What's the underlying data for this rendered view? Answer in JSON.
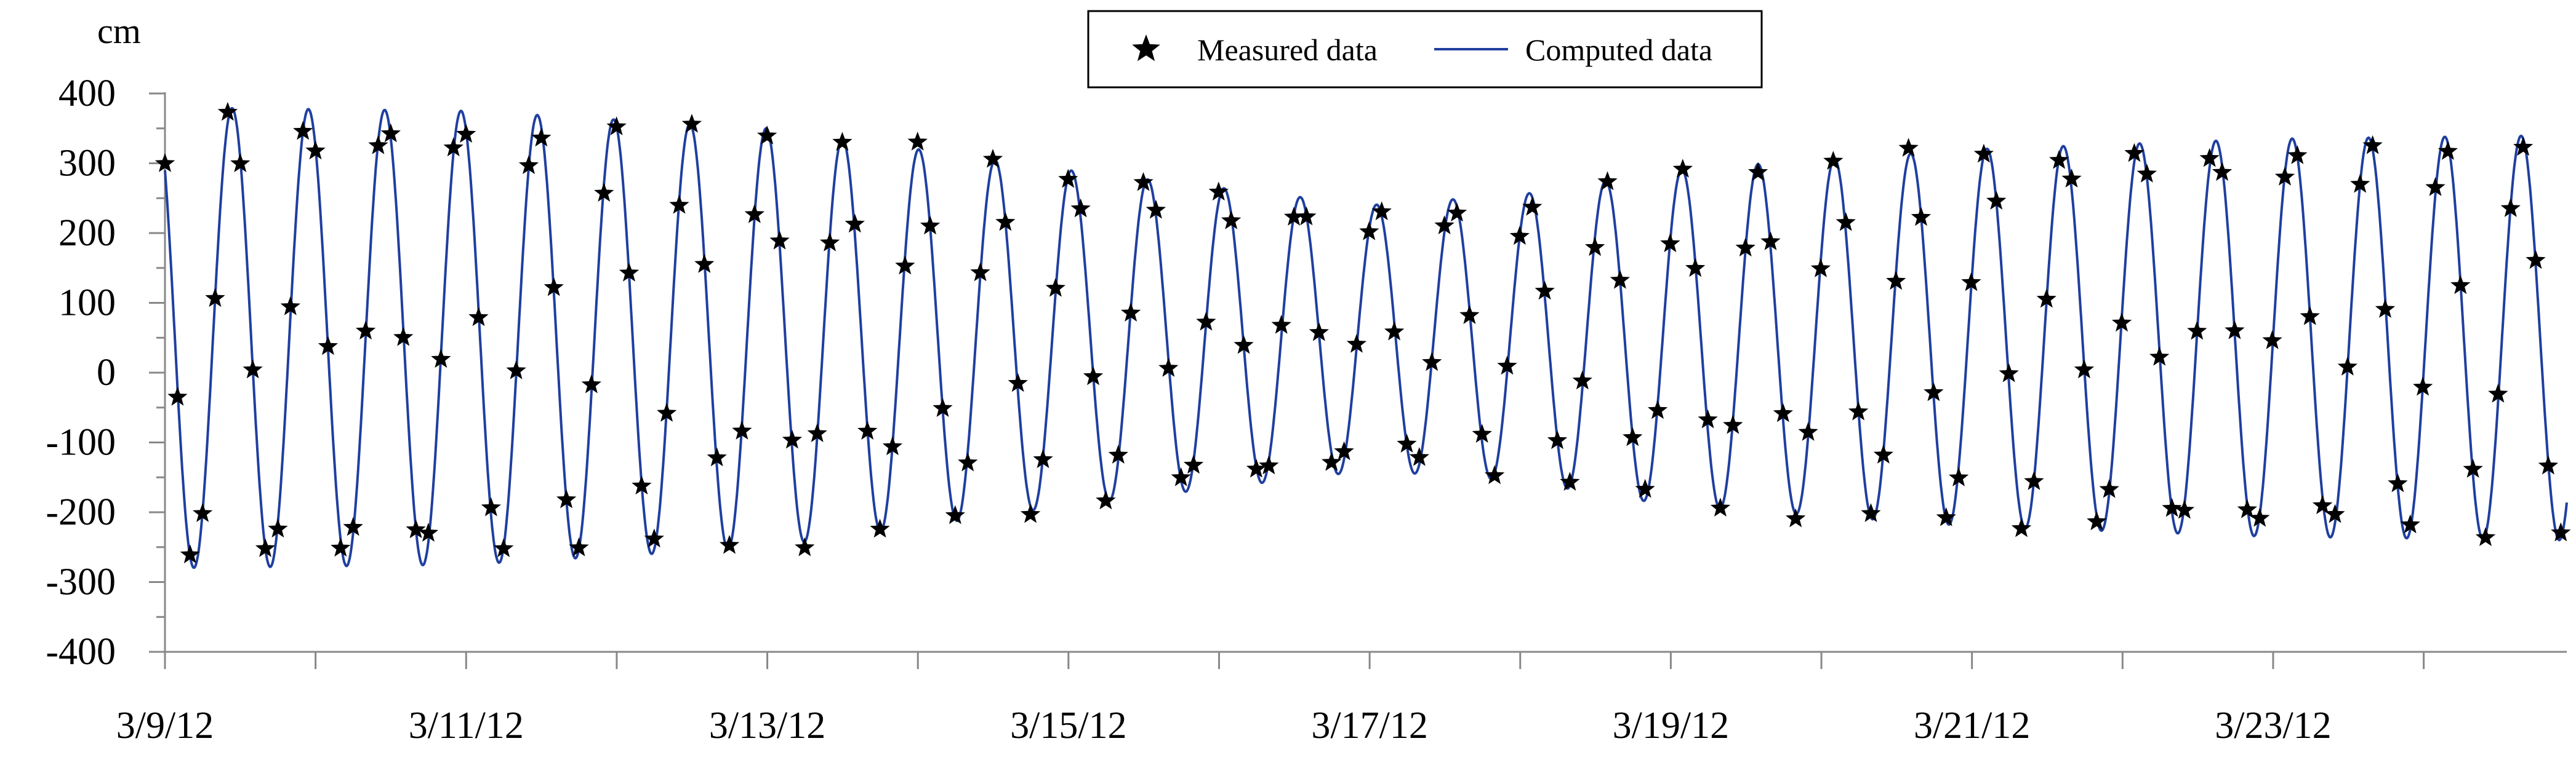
{
  "chart_data": {
    "type": "line",
    "ylabel": "cm",
    "xlabel": "",
    "ylim": [
      -400,
      400
    ],
    "xlim": [
      0,
      15.95
    ],
    "y_ticks": [
      400,
      300,
      200,
      100,
      0,
      -100,
      -200,
      -300,
      -400
    ],
    "x_tick_labels": [
      {
        "day": 0,
        "label": "3/9/12"
      },
      {
        "day": 2,
        "label": "3/11/12"
      },
      {
        "day": 4,
        "label": "3/13/12"
      },
      {
        "day": 6,
        "label": "3/15/12"
      },
      {
        "day": 8,
        "label": "3/17/12"
      },
      {
        "day": 10,
        "label": "3/19/12"
      },
      {
        "day": 12,
        "label": "3/21/12"
      },
      {
        "day": 14,
        "label": "3/23/12"
      }
    ],
    "legend": {
      "position": "top-center",
      "items": [
        {
          "label": "Measured data",
          "marker": "star",
          "color": "#000000"
        },
        {
          "label": "Computed data",
          "marker": "line",
          "color": "#1f3f9f"
        }
      ]
    },
    "series": [
      {
        "name": "Computed data",
        "style": "line",
        "color": "#1f3f9f",
        "model": {
          "period_days": 0.5067,
          "mean": 50,
          "amplitude_keypoints": [
            [
              0,
              330
            ],
            [
              2,
              325
            ],
            [
              4,
              300
            ],
            [
              6,
              240
            ],
            [
              8,
              190
            ],
            [
              9,
              205
            ],
            [
              10,
              240
            ],
            [
              12,
              270
            ],
            [
              14,
              285
            ],
            [
              15.95,
              290
            ]
          ]
        }
      },
      {
        "name": "Measured data",
        "style": "scatter",
        "marker": "star",
        "color": "#000000",
        "sampling_interval_days": 0.0833
      }
    ]
  }
}
